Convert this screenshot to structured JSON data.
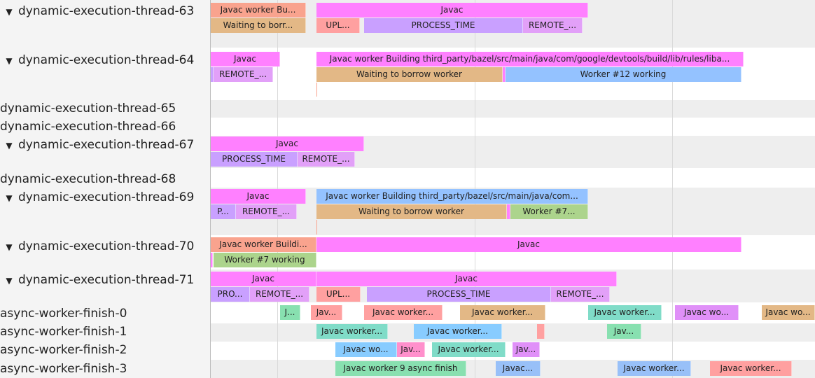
{
  "colors": {
    "javac": "#ff80ff",
    "salmon": "#f9a38e",
    "tan": "#e3b886",
    "upl": "#ffa0a0",
    "process": "#c9a0ff",
    "remote": "#e2a0f8",
    "blue": "#94c2ff",
    "green": "#acd48c",
    "teal": "#80dcc8",
    "lightblue": "#88ccff",
    "mint": "#88e0b0",
    "pink": "#ff90cc",
    "periwinkle": "#98c0f8",
    "violet": "#e090f8"
  },
  "tracks": [
    {
      "label": "dynamic-execution-thread-63",
      "expanded": true,
      "slices": [
        {
          "label": "Javac worker Bu...",
          "color": "salmon"
        },
        {
          "label": "Javac",
          "color": "javac"
        },
        {
          "label": "Waiting to borr...",
          "color": "tan"
        },
        {
          "label": "UPL...",
          "color": "upl"
        },
        {
          "label": "PROCESS_TIME",
          "color": "process"
        },
        {
          "label": "REMOTE_...",
          "color": "remote"
        }
      ]
    },
    {
      "label": "dynamic-execution-thread-64",
      "expanded": true,
      "slices": [
        {
          "label": "Javac",
          "color": "javac"
        },
        {
          "label": "Javac worker Building third_party/bazel/src/main/java/com/google/devtools/build/lib/rules/liba...",
          "color": "javac"
        },
        {
          "label": "",
          "color": "process"
        },
        {
          "label": "REMOTE_...",
          "color": "remote"
        },
        {
          "label": "Waiting to borrow worker",
          "color": "tan"
        },
        {
          "label": "",
          "color": "javac"
        },
        {
          "label": "Worker #12 working",
          "color": "blue"
        },
        {
          "label": "",
          "color": "salmon"
        }
      ]
    },
    {
      "label": "dynamic-execution-thread-65",
      "expanded": false,
      "slices": []
    },
    {
      "label": "dynamic-execution-thread-66",
      "expanded": false,
      "slices": []
    },
    {
      "label": "dynamic-execution-thread-67",
      "expanded": true,
      "slices": [
        {
          "label": "Javac",
          "color": "javac"
        },
        {
          "label": "PROCESS_TIME",
          "color": "process"
        },
        {
          "label": "REMOTE_...",
          "color": "remote"
        }
      ]
    },
    {
      "label": "dynamic-execution-thread-68",
      "expanded": false,
      "slices": []
    },
    {
      "label": "dynamic-execution-thread-69",
      "expanded": true,
      "slices": [
        {
          "label": "Javac",
          "color": "javac"
        },
        {
          "label": "Javac worker Building third_party/bazel/src/main/java/com...",
          "color": "blue"
        },
        {
          "label": "P...",
          "color": "process"
        },
        {
          "label": "REMOTE_...",
          "color": "remote"
        },
        {
          "label": "Waiting to borrow worker",
          "color": "tan"
        },
        {
          "label": "",
          "color": "javac"
        },
        {
          "label": "Worker #7...",
          "color": "green"
        },
        {
          "label": "",
          "color": "salmon"
        }
      ]
    },
    {
      "label": "dynamic-execution-thread-70",
      "expanded": true,
      "slices": [
        {
          "label": "Javac worker Buildi...",
          "color": "salmon"
        },
        {
          "label": "Javac",
          "color": "javac"
        },
        {
          "label": "",
          "color": "javac"
        },
        {
          "label": "Worker #7 working",
          "color": "green"
        }
      ]
    },
    {
      "label": "dynamic-execution-thread-71",
      "expanded": true,
      "slices": [
        {
          "label": "Javac",
          "color": "javac"
        },
        {
          "label": "Javac",
          "color": "javac"
        },
        {
          "label": "PRO...",
          "color": "process"
        },
        {
          "label": "REMOTE_...",
          "color": "remote"
        },
        {
          "label": "UPL...",
          "color": "upl"
        },
        {
          "label": "PROCESS_TIME",
          "color": "process"
        },
        {
          "label": "REMOTE_...",
          "color": "remote"
        }
      ]
    },
    {
      "label": "async-worker-finish-0",
      "expanded": false,
      "slices": [
        {
          "label": "J...",
          "color": "mint"
        },
        {
          "label": "Jav...",
          "color": "upl"
        },
        {
          "label": "Javac worker...",
          "color": "upl"
        },
        {
          "label": "Javac worker...",
          "color": "tan"
        },
        {
          "label": "Javac worker...",
          "color": "teal"
        },
        {
          "label": "Javac wo...",
          "color": "violet"
        },
        {
          "label": "Javac wo...",
          "color": "tan"
        }
      ]
    },
    {
      "label": "async-worker-finish-1",
      "expanded": false,
      "slices": [
        {
          "label": "Javac worker...",
          "color": "teal"
        },
        {
          "label": "Javac worker...",
          "color": "lightblue"
        },
        {
          "label": "",
          "color": "upl"
        },
        {
          "label": "Jav...",
          "color": "mint"
        }
      ]
    },
    {
      "label": "async-worker-finish-2",
      "expanded": false,
      "slices": [
        {
          "label": "Javac wo...",
          "color": "lightblue"
        },
        {
          "label": "Jav...",
          "color": "pink"
        },
        {
          "label": "Javac worker...",
          "color": "teal"
        },
        {
          "label": "Jav...",
          "color": "violet"
        }
      ]
    },
    {
      "label": "async-worker-finish-3",
      "expanded": false,
      "slices": [
        {
          "label": "Javac worker 9 async finish",
          "color": "mint"
        },
        {
          "label": "Javac...",
          "color": "periwinkle"
        },
        {
          "label": "Javac worker...",
          "color": "periwinkle"
        },
        {
          "label": "Javac worker...",
          "color": "upl"
        }
      ]
    }
  ]
}
